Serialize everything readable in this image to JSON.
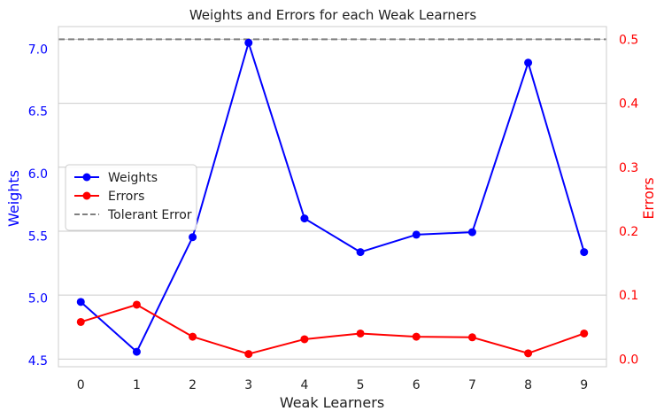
{
  "chart_data": {
    "type": "line",
    "title": "Weights and Errors for each Weak Learners",
    "xlabel": "Weak Learners",
    "ylabel_left": "Weights",
    "ylabel_right": "Errors",
    "x": [
      0,
      1,
      2,
      3,
      4,
      5,
      6,
      7,
      8,
      9
    ],
    "x_tick_labels": [
      "0",
      "1",
      "2",
      "3",
      "4",
      "5",
      "6",
      "7",
      "8",
      "9"
    ],
    "xlim": [
      -0.4,
      9.4
    ],
    "ylim_left": [
      4.45,
      7.18
    ],
    "ylim_right": [
      -0.012,
      0.52
    ],
    "y_left_ticks": [
      "4.5",
      "5.0",
      "5.5",
      "6.0",
      "6.5",
      "7.0"
    ],
    "y_right_ticks": [
      "0.0",
      "0.1",
      "0.2",
      "0.3",
      "0.4",
      "0.5"
    ],
    "series": [
      {
        "name": "Weights",
        "axis": "left",
        "color": "#0000ff",
        "marker": "circle",
        "values": [
          4.97,
          4.57,
          5.49,
          7.05,
          5.64,
          5.37,
          5.51,
          5.53,
          6.89,
          5.37
        ]
      },
      {
        "name": "Errors",
        "axis": "right",
        "color": "#ff0000",
        "marker": "circle",
        "values": [
          0.058,
          0.085,
          0.035,
          0.008,
          0.031,
          0.04,
          0.035,
          0.034,
          0.009,
          0.04
        ]
      }
    ],
    "reference_line": {
      "name": "Tolerant Error",
      "axis": "right",
      "value": 0.5,
      "color": "#808080",
      "style": "dashed"
    },
    "legend": {
      "placement": "center-left",
      "entries": [
        "Weights",
        "Errors",
        "Tolerant Error"
      ]
    },
    "grid": "horizontal (right axis)",
    "colors": {
      "left_axis": "#0000ff",
      "right_axis": "#ff0000",
      "grid": "#cccccc",
      "frame": "#cccccc"
    }
  }
}
